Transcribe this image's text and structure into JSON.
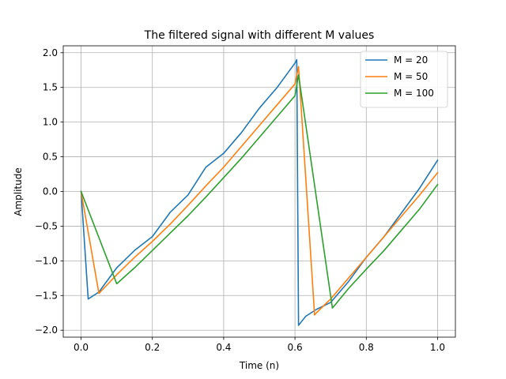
{
  "chart_data": {
    "type": "line",
    "title": "The filtered signal with different M values",
    "xlabel": "Time (n)",
    "ylabel": "Amplitude",
    "xlim": [
      -0.05,
      1.05
    ],
    "ylim": [
      -2.1,
      2.1
    ],
    "xticks": [
      "0.0",
      "0.2",
      "0.4",
      "0.6",
      "0.8",
      "1.0"
    ],
    "xtick_values": [
      0.0,
      0.2,
      0.4,
      0.6,
      0.8,
      1.0
    ],
    "yticks": [
      "−2.0",
      "−1.5",
      "−1.0",
      "−0.5",
      "0.0",
      "0.5",
      "1.0",
      "1.5",
      "2.0"
    ],
    "ytick_values": [
      -2.0,
      -1.5,
      -1.0,
      -0.5,
      0.0,
      0.5,
      1.0,
      1.5,
      2.0
    ],
    "grid": true,
    "legend_position": "top-right",
    "series": [
      {
        "name": "M = 20",
        "color": "#1f77b4",
        "x": [
          0.0,
          0.02,
          0.05,
          0.1,
          0.15,
          0.2,
          0.25,
          0.3,
          0.35,
          0.4,
          0.45,
          0.5,
          0.55,
          0.6,
          0.605,
          0.61,
          0.63,
          0.66,
          0.7,
          0.75,
          0.8,
          0.85,
          0.9,
          0.95,
          1.0
        ],
        "y": [
          0.0,
          -1.55,
          -1.45,
          -1.1,
          -0.85,
          -0.65,
          -0.3,
          -0.05,
          0.35,
          0.55,
          0.85,
          1.2,
          1.5,
          1.85,
          1.9,
          -1.93,
          -1.8,
          -1.7,
          -1.6,
          -1.3,
          -0.95,
          -0.65,
          -0.3,
          0.05,
          0.45
        ]
      },
      {
        "name": "M = 50",
        "color": "#ff7f0e",
        "x": [
          0.0,
          0.05,
          0.1,
          0.15,
          0.2,
          0.25,
          0.3,
          0.35,
          0.4,
          0.45,
          0.5,
          0.55,
          0.6,
          0.61,
          0.655,
          0.66,
          0.7,
          0.75,
          0.8,
          0.85,
          0.9,
          0.95,
          1.0
        ],
        "y": [
          0.0,
          -1.47,
          -1.2,
          -0.95,
          -0.72,
          -0.47,
          -0.2,
          0.08,
          0.35,
          0.65,
          0.95,
          1.25,
          1.55,
          1.8,
          -1.78,
          -1.75,
          -1.55,
          -1.25,
          -0.95,
          -0.65,
          -0.35,
          -0.05,
          0.27
        ]
      },
      {
        "name": "M = 100",
        "color": "#2ca02c",
        "x": [
          0.0,
          0.1,
          0.15,
          0.2,
          0.25,
          0.3,
          0.35,
          0.4,
          0.45,
          0.5,
          0.55,
          0.6,
          0.61,
          0.705,
          0.71,
          0.75,
          0.8,
          0.85,
          0.9,
          0.95,
          1.0
        ],
        "y": [
          0.0,
          -1.33,
          -1.1,
          -0.85,
          -0.6,
          -0.35,
          -0.08,
          0.2,
          0.48,
          0.78,
          1.08,
          1.38,
          1.68,
          -1.68,
          -1.65,
          -1.4,
          -1.12,
          -0.85,
          -0.55,
          -0.25,
          0.1
        ]
      }
    ]
  }
}
